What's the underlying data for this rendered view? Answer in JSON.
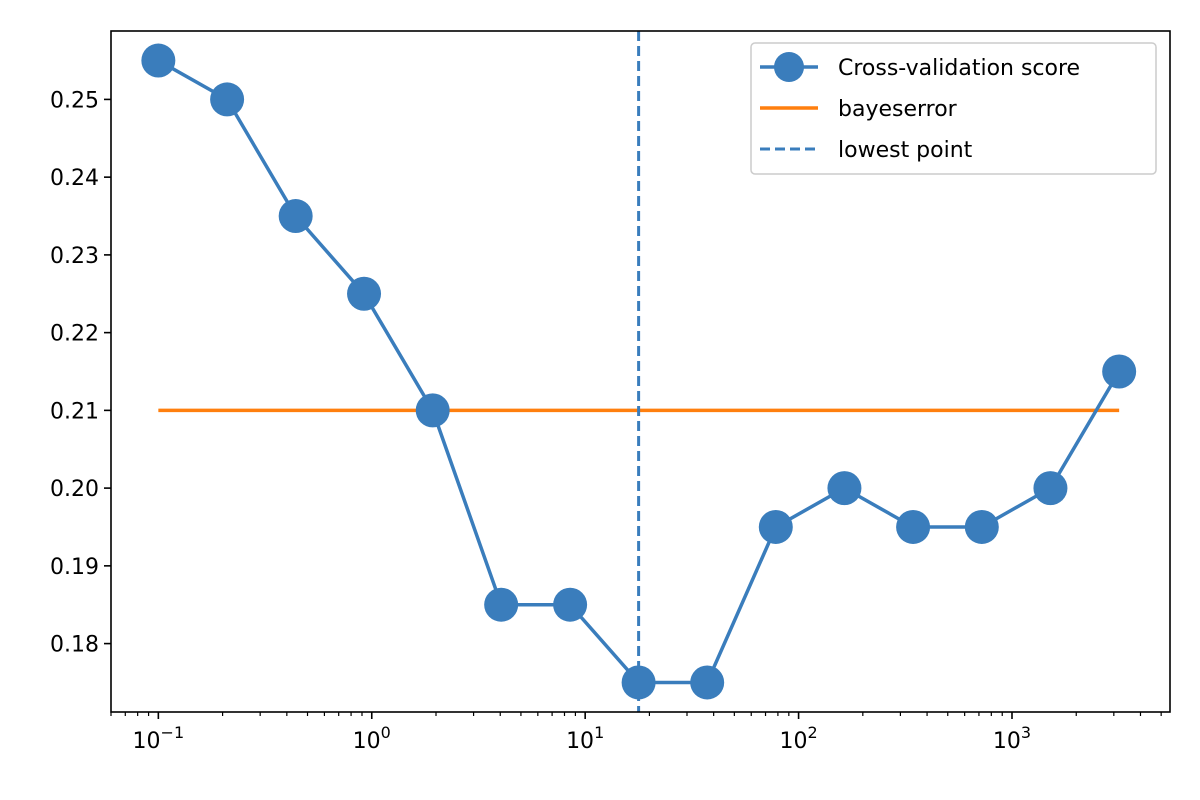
{
  "chart_data": {
    "type": "line",
    "x_scale": "log",
    "xlim": [
      0.06,
      5500
    ],
    "ylim": [
      0.1712,
      0.2588
    ],
    "x_ticks": [
      {
        "value": 0.1,
        "base": "10",
        "exp": "−1"
      },
      {
        "value": 1,
        "base": "10",
        "exp": "0"
      },
      {
        "value": 10,
        "base": "10",
        "exp": "1"
      },
      {
        "value": 100,
        "base": "10",
        "exp": "2"
      },
      {
        "value": 1000,
        "base": "10",
        "exp": "3"
      }
    ],
    "y_ticks": [
      {
        "value": 0.18,
        "label": "0.18"
      },
      {
        "value": 0.19,
        "label": "0.19"
      },
      {
        "value": 0.2,
        "label": "0.20"
      },
      {
        "value": 0.21,
        "label": "0.21"
      },
      {
        "value": 0.22,
        "label": "0.22"
      },
      {
        "value": 0.23,
        "label": "0.23"
      },
      {
        "value": 0.24,
        "label": "0.24"
      },
      {
        "value": 0.25,
        "label": "0.25"
      }
    ],
    "series": [
      {
        "name": "Cross-validation score",
        "kind": "line-marker",
        "color": "#3a7dbc",
        "x": [
          0.1,
          0.21,
          0.44,
          0.92,
          1.93,
          4.04,
          8.5,
          17.8,
          37.3,
          78.2,
          164,
          344,
          722,
          1514,
          3178
        ],
        "y": [
          0.255,
          0.25,
          0.235,
          0.225,
          0.21,
          0.185,
          0.185,
          0.175,
          0.175,
          0.195,
          0.2,
          0.195,
          0.195,
          0.2,
          0.215
        ]
      },
      {
        "name": "bayeserror",
        "kind": "line",
        "color": "#ff7f0e",
        "x": [
          0.1,
          3178
        ],
        "y": [
          0.21,
          0.21
        ]
      },
      {
        "name": "lowest point",
        "kind": "vline-dashed",
        "color": "#3a7dbc",
        "x": 17.8
      }
    ],
    "legend_position": "top-right",
    "grid": false
  }
}
